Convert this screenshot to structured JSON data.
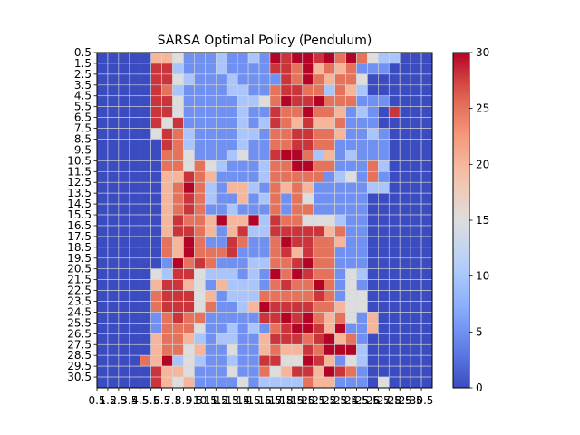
{
  "chart_data": {
    "type": "heatmap",
    "title": "SARSA Optimal Policy (Pendulum)",
    "xlabel": "",
    "ylabel": "",
    "x_tick_labels": [
      "0.5",
      "1.5",
      "2.5",
      "3.5",
      "4.5",
      "5.5",
      "6.5",
      "7.5",
      "8.5",
      "9.5",
      "10.5",
      "11.5",
      "12.5",
      "13.5",
      "14.5",
      "15.5",
      "16.5",
      "17.5",
      "18.5",
      "19.5",
      "20.5",
      "21.5",
      "22.5",
      "23.5",
      "24.5",
      "25.5",
      "26.5",
      "27.5",
      "28.5",
      "29.5",
      "30.5"
    ],
    "y_tick_labels": [
      "0.5",
      "1.5",
      "2.5",
      "3.5",
      "4.5",
      "5.5",
      "6.5",
      "7.5",
      "8.5",
      "9.5",
      "10.5",
      "11.5",
      "12.5",
      "13.5",
      "14.5",
      "15.5",
      "16.5",
      "17.5",
      "18.5",
      "19.5",
      "20.5",
      "21.5",
      "22.5",
      "23.5",
      "24.5",
      "25.5",
      "26.5",
      "27.5",
      "28.5",
      "29.5",
      "30.5"
    ],
    "colormap": "coolwarm",
    "vmin": 0,
    "vmax": 30,
    "colorbar_ticks": [
      0,
      5,
      10,
      15,
      20,
      25,
      30
    ],
    "colorbar_tick_labels": [
      "0",
      "5",
      "10",
      "15",
      "20",
      "25",
      "30"
    ],
    "grid": true,
    "values": [
      [
        0,
        0,
        0,
        0,
        0,
        20,
        20,
        15,
        5,
        5,
        5,
        10,
        5,
        5,
        10,
        5,
        30,
        28,
        30,
        30,
        28,
        30,
        25,
        30,
        25,
        15,
        10,
        10,
        0,
        0,
        0
      ],
      [
        0,
        0,
        0,
        0,
        0,
        28,
        28,
        10,
        5,
        5,
        5,
        10,
        5,
        5,
        5,
        5,
        28,
        28,
        25,
        30,
        20,
        25,
        20,
        25,
        5,
        5,
        5,
        0,
        0,
        0,
        0
      ],
      [
        0,
        0,
        0,
        0,
        0,
        28,
        28,
        15,
        10,
        5,
        5,
        5,
        10,
        5,
        5,
        5,
        5,
        28,
        25,
        30,
        25,
        20,
        25,
        25,
        15,
        0,
        0,
        0,
        0,
        0,
        0
      ],
      [
        0,
        0,
        0,
        0,
        0,
        28,
        25,
        10,
        5,
        5,
        5,
        5,
        10,
        10,
        5,
        5,
        25,
        28,
        28,
        25,
        25,
        10,
        25,
        20,
        10,
        0,
        0,
        0,
        0,
        0,
        0
      ],
      [
        0,
        0,
        0,
        0,
        0,
        28,
        28,
        15,
        5,
        5,
        5,
        5,
        5,
        10,
        10,
        15,
        25,
        30,
        28,
        28,
        30,
        25,
        25,
        25,
        5,
        5,
        5,
        0,
        0,
        0,
        0
      ],
      [
        0,
        0,
        0,
        0,
        0,
        28,
        28,
        15,
        5,
        5,
        5,
        5,
        5,
        10,
        5,
        5,
        28,
        25,
        25,
        30,
        25,
        25,
        20,
        5,
        10,
        5,
        0,
        28,
        0,
        0,
        0
      ],
      [
        0,
        0,
        0,
        0,
        0,
        28,
        15,
        28,
        5,
        5,
        5,
        5,
        5,
        10,
        5,
        10,
        28,
        25,
        20,
        28,
        20,
        20,
        25,
        5,
        5,
        5,
        0,
        0,
        0,
        0,
        0
      ],
      [
        0,
        0,
        0,
        0,
        0,
        15,
        28,
        25,
        10,
        5,
        5,
        5,
        5,
        10,
        10,
        5,
        25,
        25,
        28,
        28,
        25,
        25,
        20,
        5,
        5,
        10,
        5,
        0,
        0,
        0,
        0
      ],
      [
        0,
        0,
        0,
        0,
        0,
        0,
        28,
        25,
        10,
        5,
        5,
        5,
        5,
        10,
        5,
        5,
        25,
        25,
        28,
        28,
        25,
        25,
        5,
        5,
        5,
        5,
        5,
        0,
        0,
        0,
        0
      ],
      [
        0,
        0,
        0,
        0,
        0,
        0,
        25,
        25,
        15,
        5,
        5,
        5,
        10,
        15,
        5,
        5,
        28,
        30,
        30,
        25,
        10,
        20,
        5,
        10,
        5,
        5,
        5,
        0,
        0,
        0,
        0
      ],
      [
        0,
        0,
        0,
        0,
        0,
        0,
        25,
        25,
        15,
        25,
        15,
        10,
        5,
        5,
        5,
        10,
        25,
        25,
        30,
        30,
        25,
        25,
        5,
        5,
        5,
        25,
        10,
        0,
        0,
        0,
        0
      ],
      [
        0,
        0,
        0,
        0,
        0,
        0,
        20,
        20,
        28,
        25,
        20,
        5,
        5,
        5,
        5,
        10,
        25,
        25,
        25,
        25,
        25,
        5,
        10,
        15,
        5,
        25,
        5,
        0,
        0,
        0,
        0
      ],
      [
        0,
        0,
        0,
        0,
        0,
        0,
        20,
        25,
        30,
        25,
        10,
        5,
        20,
        20,
        10,
        5,
        25,
        20,
        25,
        20,
        5,
        5,
        5,
        5,
        5,
        10,
        10,
        0,
        0,
        0,
        0
      ],
      [
        0,
        0,
        0,
        0,
        0,
        0,
        20,
        25,
        28,
        25,
        10,
        5,
        5,
        20,
        5,
        10,
        25,
        5,
        25,
        15,
        5,
        5,
        5,
        5,
        5,
        0,
        0,
        0,
        0,
        0,
        0
      ],
      [
        0,
        0,
        0,
        0,
        0,
        0,
        20,
        25,
        28,
        25,
        5,
        5,
        10,
        5,
        5,
        5,
        25,
        5,
        25,
        25,
        5,
        5,
        5,
        5,
        5,
        0,
        0,
        0,
        0,
        0,
        0
      ],
      [
        0,
        0,
        0,
        0,
        0,
        0,
        20,
        28,
        25,
        25,
        20,
        30,
        20,
        20,
        30,
        10,
        28,
        25,
        25,
        15,
        15,
        15,
        10,
        5,
        5,
        0,
        0,
        0,
        0,
        0,
        0
      ],
      [
        0,
        0,
        0,
        0,
        0,
        0,
        20,
        28,
        28,
        25,
        20,
        5,
        20,
        28,
        10,
        10,
        28,
        28,
        28,
        28,
        28,
        20,
        25,
        5,
        5,
        0,
        0,
        0,
        0,
        0,
        0
      ],
      [
        0,
        0,
        0,
        0,
        0,
        0,
        25,
        20,
        30,
        25,
        5,
        5,
        28,
        25,
        5,
        5,
        25,
        30,
        28,
        28,
        25,
        25,
        20,
        5,
        5,
        0,
        0,
        0,
        0,
        0,
        0
      ],
      [
        0,
        0,
        0,
        0,
        0,
        0,
        25,
        20,
        30,
        25,
        25,
        25,
        28,
        5,
        5,
        5,
        25,
        28,
        20,
        28,
        25,
        25,
        5,
        5,
        5,
        0,
        0,
        0,
        0,
        0,
        0
      ],
      [
        0,
        0,
        0,
        0,
        0,
        0,
        5,
        30,
        25,
        28,
        25,
        5,
        5,
        5,
        10,
        10,
        25,
        25,
        28,
        30,
        25,
        25,
        5,
        5,
        5,
        0,
        0,
        0,
        0,
        0,
        0
      ],
      [
        0,
        0,
        0,
        0,
        0,
        15,
        10,
        28,
        28,
        15,
        10,
        10,
        10,
        5,
        10,
        5,
        30,
        25,
        30,
        28,
        25,
        25,
        5,
        15,
        10,
        0,
        0,
        0,
        0,
        0,
        0
      ],
      [
        0,
        0,
        0,
        0,
        0,
        20,
        28,
        28,
        20,
        15,
        5,
        20,
        10,
        10,
        10,
        5,
        25,
        28,
        25,
        25,
        30,
        25,
        5,
        15,
        5,
        0,
        0,
        0,
        0,
        0,
        0
      ],
      [
        0,
        0,
        0,
        0,
        0,
        25,
        28,
        28,
        28,
        15,
        20,
        5,
        10,
        10,
        10,
        25,
        25,
        25,
        25,
        25,
        28,
        25,
        5,
        15,
        15,
        0,
        0,
        0,
        0,
        0,
        0
      ],
      [
        0,
        0,
        0,
        0,
        0,
        25,
        28,
        28,
        28,
        15,
        25,
        5,
        5,
        10,
        20,
        30,
        28,
        28,
        28,
        28,
        25,
        25,
        20,
        15,
        15,
        0,
        0,
        0,
        0,
        0,
        0
      ],
      [
        0,
        0,
        0,
        0,
        0,
        5,
        25,
        28,
        25,
        25,
        5,
        5,
        5,
        5,
        5,
        28,
        28,
        30,
        28,
        30,
        25,
        20,
        25,
        15,
        5,
        20,
        0,
        0,
        0,
        0,
        0
      ],
      [
        0,
        0,
        0,
        0,
        0,
        5,
        25,
        25,
        25,
        15,
        5,
        5,
        10,
        5,
        10,
        5,
        25,
        28,
        30,
        30,
        28,
        20,
        30,
        5,
        5,
        20,
        0,
        0,
        0,
        0,
        0
      ],
      [
        0,
        0,
        0,
        0,
        0,
        20,
        25,
        25,
        20,
        10,
        5,
        10,
        10,
        5,
        5,
        20,
        28,
        28,
        28,
        25,
        28,
        30,
        20,
        25,
        5,
        0,
        0,
        0,
        0,
        0,
        0
      ],
      [
        0,
        0,
        0,
        0,
        0,
        20,
        25,
        25,
        15,
        20,
        5,
        5,
        15,
        5,
        5,
        20,
        25,
        20,
        20,
        28,
        25,
        30,
        30,
        30,
        10,
        0,
        0,
        0,
        0,
        0,
        0
      ],
      [
        0,
        0,
        0,
        0,
        25,
        20,
        30,
        10,
        15,
        10,
        5,
        5,
        10,
        5,
        5,
        28,
        28,
        15,
        15,
        30,
        28,
        20,
        5,
        15,
        10,
        0,
        0,
        0,
        0,
        0,
        0
      ],
      [
        0,
        0,
        0,
        0,
        0,
        28,
        20,
        20,
        15,
        5,
        5,
        5,
        15,
        5,
        5,
        25,
        15,
        20,
        28,
        28,
        20,
        30,
        28,
        25,
        5,
        0,
        0,
        0,
        0,
        0,
        0
      ],
      [
        0,
        0,
        0,
        0,
        0,
        28,
        20,
        15,
        20,
        5,
        5,
        5,
        5,
        15,
        5,
        10,
        10,
        10,
        10,
        25,
        20,
        20,
        5,
        5,
        5,
        0,
        15,
        0,
        0,
        0,
        0
      ]
    ]
  }
}
